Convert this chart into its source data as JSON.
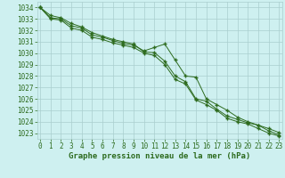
{
  "x": [
    0,
    1,
    2,
    3,
    4,
    5,
    6,
    7,
    8,
    9,
    10,
    11,
    12,
    13,
    14,
    15,
    16,
    17,
    18,
    19,
    20,
    21,
    22,
    23
  ],
  "line1": [
    1034.0,
    1033.3,
    1033.1,
    1032.6,
    1032.3,
    1031.8,
    1031.5,
    1031.2,
    1031.0,
    1030.8,
    1030.1,
    1030.05,
    1029.3,
    1028.0,
    1027.5,
    1026.0,
    1025.8,
    1025.1,
    1024.5,
    1024.2,
    1023.9,
    1023.7,
    1023.4,
    1023.05
  ],
  "line2": [
    1034.0,
    1033.1,
    1033.0,
    1032.4,
    1032.2,
    1031.6,
    1031.4,
    1031.1,
    1030.85,
    1030.7,
    1030.2,
    1030.5,
    1030.8,
    1029.4,
    1028.0,
    1027.9,
    1026.0,
    1025.5,
    1025.0,
    1024.4,
    1024.0,
    1023.7,
    1023.2,
    1022.85
  ],
  "line3": [
    1034.0,
    1033.0,
    1032.9,
    1032.2,
    1032.0,
    1031.4,
    1031.2,
    1030.9,
    1030.7,
    1030.5,
    1030.0,
    1029.8,
    1029.0,
    1027.7,
    1027.3,
    1025.9,
    1025.5,
    1025.0,
    1024.3,
    1024.0,
    1023.8,
    1023.4,
    1023.0,
    1022.75
  ],
  "line_color": "#2d6b1e",
  "bg_color": "#cef0f0",
  "grid_color": "#aacece",
  "xlabel": "Graphe pression niveau de la mer (hPa)",
  "ylim": [
    1022.5,
    1034.5
  ],
  "yticks": [
    1023,
    1024,
    1025,
    1026,
    1027,
    1028,
    1029,
    1030,
    1031,
    1032,
    1033,
    1034
  ],
  "xticks": [
    0,
    1,
    2,
    3,
    4,
    5,
    6,
    7,
    8,
    9,
    10,
    11,
    12,
    13,
    14,
    15,
    16,
    17,
    18,
    19,
    20,
    21,
    22,
    23
  ],
  "tick_fontsize": 5.5,
  "xlabel_fontsize": 6.5
}
